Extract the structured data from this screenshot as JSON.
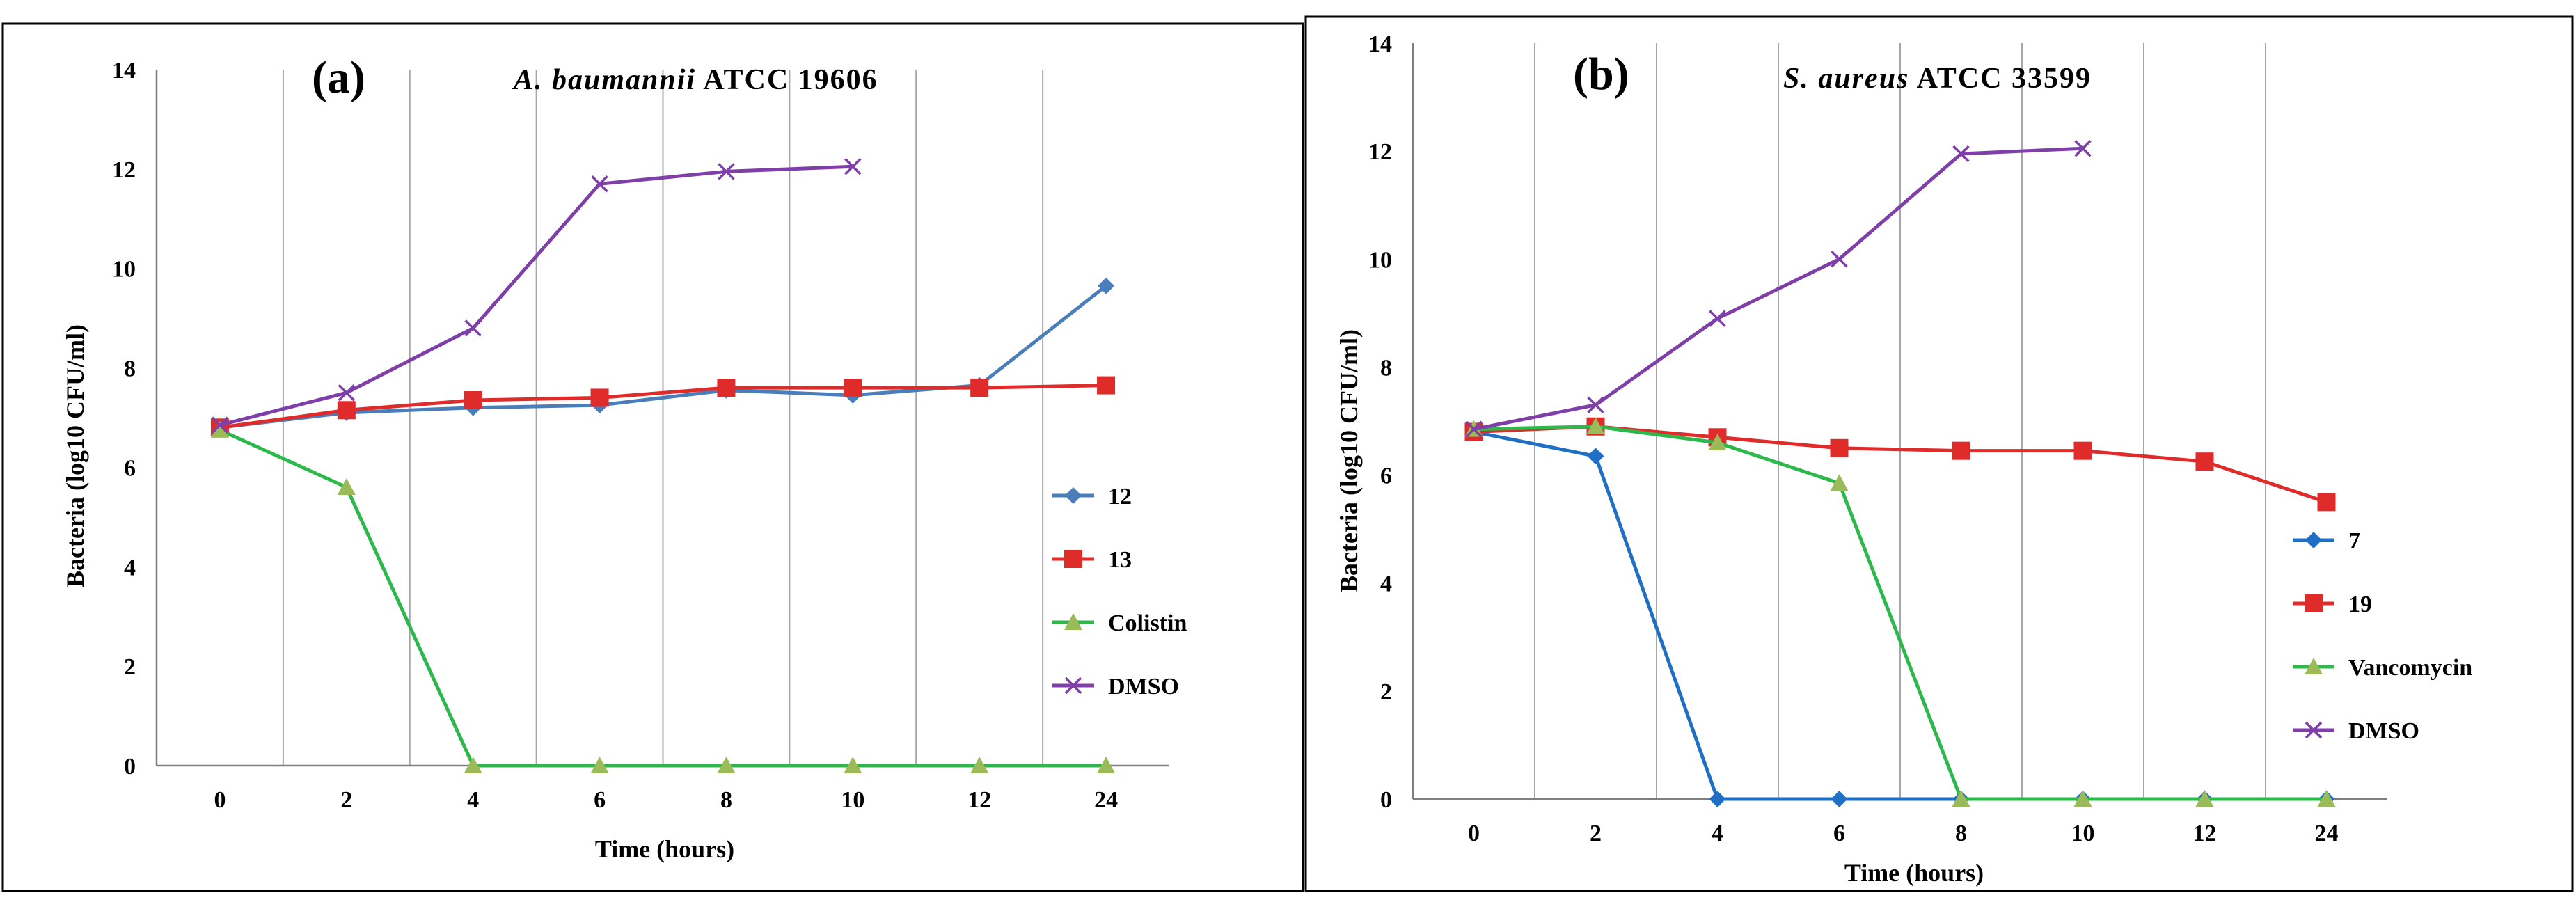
{
  "chart_data": [
    {
      "type": "line",
      "panel_label": "(a)",
      "title_italic": "A. baumannii",
      "title_rest": " ATCC 19606",
      "xlabel": "Time (hours)",
      "ylabel": "Bacteria (log10 CFU/ml)",
      "categories": [
        "0",
        "2",
        "4",
        "6",
        "8",
        "10",
        "12",
        "24"
      ],
      "ylim": [
        0,
        14
      ],
      "yticks": [
        "0",
        "2",
        "4",
        "6",
        "8",
        "10",
        "12",
        "14"
      ],
      "grid": "vertical",
      "legend_position": "right",
      "series": [
        {
          "name": "12",
          "color": "#4a7ebb",
          "marker": "diamond",
          "values": [
            6.8,
            7.1,
            7.2,
            7.25,
            7.55,
            7.45,
            7.65,
            9.65
          ]
        },
        {
          "name": "13",
          "color": "#e02b2b",
          "marker": "square",
          "values": [
            6.8,
            7.15,
            7.35,
            7.4,
            7.6,
            7.6,
            7.6,
            7.65
          ]
        },
        {
          "name": "Colistin",
          "color": "#2db84b",
          "marker": "triangle",
          "values": [
            6.75,
            5.6,
            0,
            0,
            0,
            0,
            0,
            0
          ]
        },
        {
          "name": "DMSO",
          "color": "#7f3fa8",
          "marker": "x",
          "values": [
            6.85,
            7.5,
            8.8,
            11.7,
            11.95,
            12.05,
            null,
            null
          ]
        }
      ]
    },
    {
      "type": "line",
      "panel_label": "(b)",
      "title_italic": "S. aureus",
      "title_rest": " ATCC 33599",
      "xlabel": "Time (hours)",
      "ylabel": "Bacteria (log10 CFU/ml)",
      "categories": [
        "0",
        "2",
        "4",
        "6",
        "8",
        "10",
        "12",
        "24"
      ],
      "ylim": [
        0,
        14
      ],
      "yticks": [
        "0",
        "2",
        "4",
        "6",
        "8",
        "10",
        "12",
        "14"
      ],
      "grid": "vertical",
      "legend_position": "right",
      "series": [
        {
          "name": "7",
          "color": "#1f6fc5",
          "marker": "diamond",
          "values": [
            6.8,
            6.35,
            0,
            0,
            0,
            0,
            0,
            0
          ]
        },
        {
          "name": "19",
          "color": "#e02b2b",
          "marker": "square",
          "values": [
            6.8,
            6.9,
            6.7,
            6.5,
            6.45,
            6.45,
            6.25,
            5.5
          ]
        },
        {
          "name": "Vancomycin",
          "color": "#2db84b",
          "marker": "triangle",
          "values": [
            6.85,
            6.9,
            6.6,
            5.85,
            0,
            0,
            0,
            0
          ]
        },
        {
          "name": "DMSO",
          "color": "#7f3fa8",
          "marker": "x",
          "values": [
            6.85,
            7.3,
            8.9,
            10.0,
            11.95,
            12.05,
            null,
            null
          ]
        }
      ]
    }
  ]
}
